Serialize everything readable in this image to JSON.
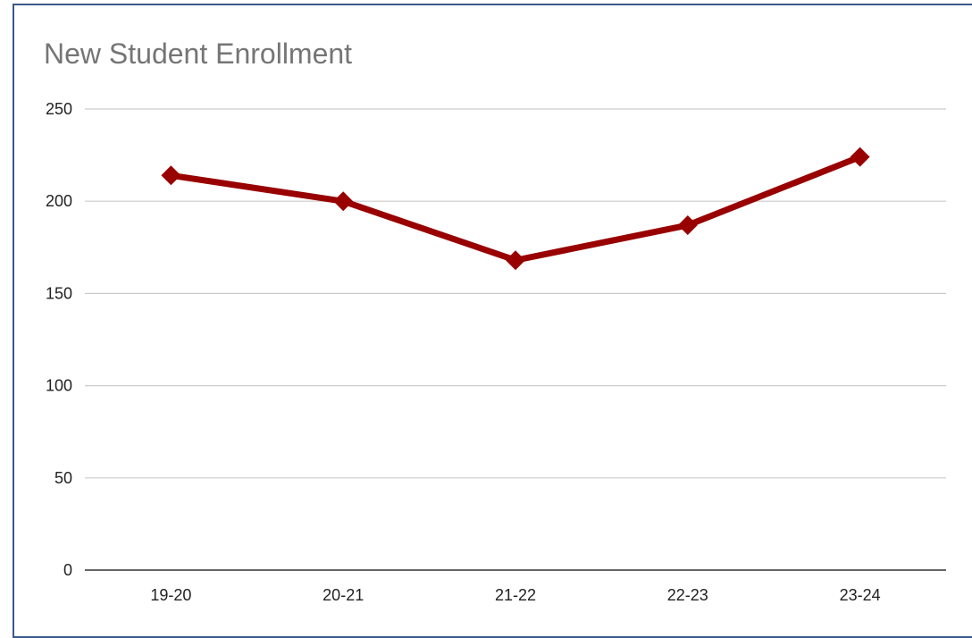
{
  "chart_data": {
    "type": "line",
    "title": "New Student Enrollment",
    "xlabel": "",
    "ylabel": "",
    "categories": [
      "19-20",
      "20-21",
      "21-22",
      "22-23",
      "23-24"
    ],
    "series": [
      {
        "values": [
          214,
          200,
          168,
          187,
          224
        ],
        "color": "#990000",
        "marker": "diamond"
      }
    ],
    "ylim": [
      0,
      250
    ],
    "yticks": [
      0,
      50,
      100,
      150,
      200,
      250
    ],
    "grid": true,
    "legend": "none",
    "colors": {
      "line": "#990000",
      "grid": "#cccccc",
      "axis": "#333333",
      "title": "#757575"
    }
  }
}
